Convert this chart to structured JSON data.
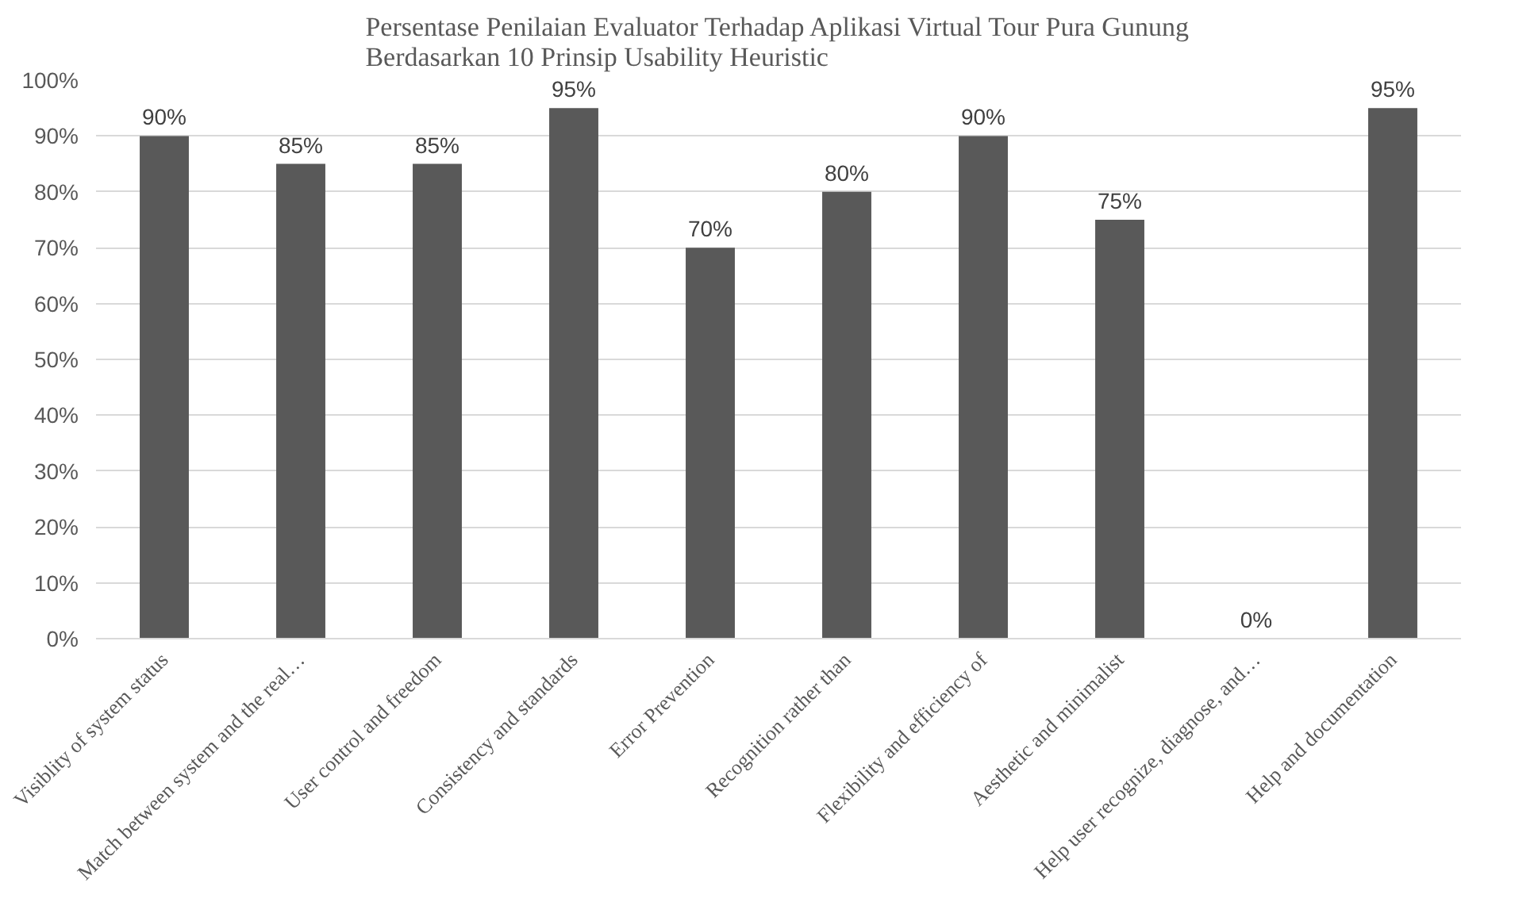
{
  "chart_data": {
    "type": "bar",
    "title": "Persentase Penilaian Evaluator Terhadap Aplikasi Virtual Tour Pura Gunung\nBerdasarkan 10 Prinsip Usability Heuristic",
    "categories": [
      "Visiblity of system status",
      "Match between system and the real…",
      "User control and freedom",
      "Consistency and standards",
      "Error Prevention",
      "Recognition rather than",
      "Flexibility and efficiency of",
      "Aesthetic and minimalist",
      "Help user recognize, diagnose, and…",
      "Help and documentation"
    ],
    "values": [
      90,
      85,
      85,
      95,
      70,
      80,
      90,
      75,
      0,
      95
    ],
    "value_labels": [
      "90%",
      "85%",
      "85%",
      "95%",
      "70%",
      "80%",
      "90%",
      "75%",
      "0%",
      "95%"
    ],
    "color": "#595959",
    "ylim": [
      0,
      100
    ],
    "yticks": [
      {
        "value": 0,
        "label": "0%"
      },
      {
        "value": 10,
        "label": "10%"
      },
      {
        "value": 20,
        "label": "20%"
      },
      {
        "value": 30,
        "label": "30%"
      },
      {
        "value": 40,
        "label": "40%"
      },
      {
        "value": 50,
        "label": "50%"
      },
      {
        "value": 60,
        "label": "60%"
      },
      {
        "value": 70,
        "label": "70%"
      },
      {
        "value": 80,
        "label": "80%"
      },
      {
        "value": 90,
        "label": "90%"
      },
      {
        "value": 100,
        "label": "100%"
      }
    ],
    "grid": "y"
  }
}
